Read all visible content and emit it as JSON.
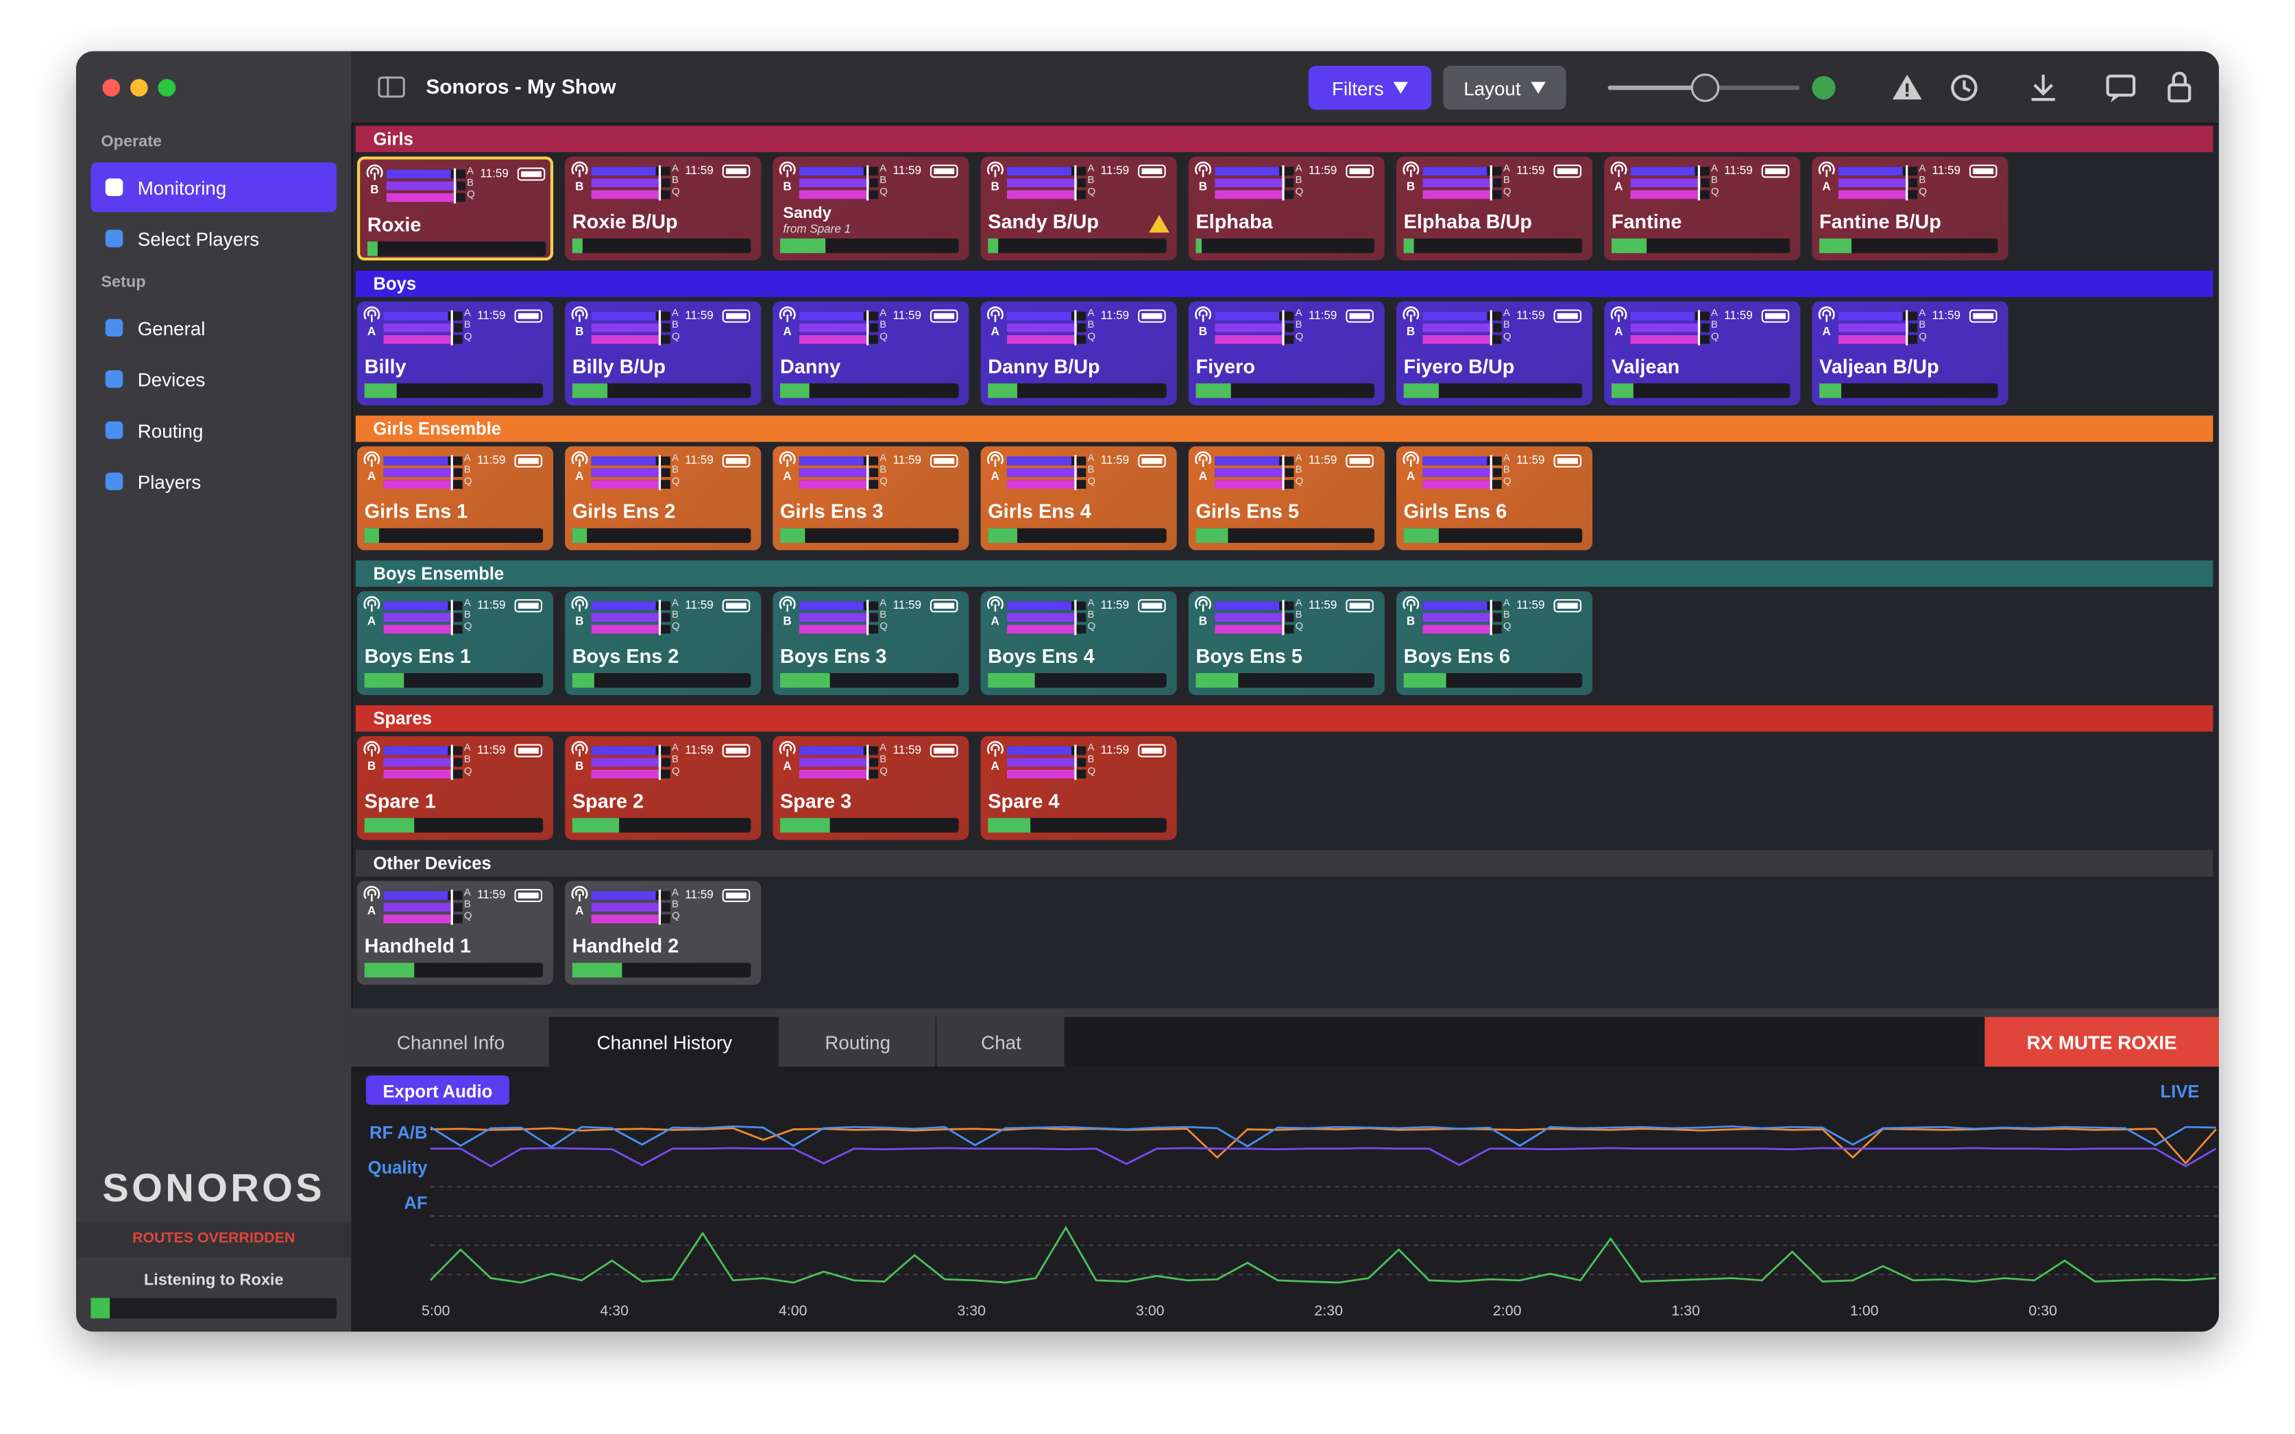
{
  "toolbar": {
    "title": "Sonoros - My Show",
    "filters": "Filters",
    "layout": "Layout"
  },
  "sidebar": {
    "sections": [
      {
        "title": "Operate",
        "items": [
          "Monitoring",
          "Select Players"
        ]
      },
      {
        "title": "Setup",
        "items": [
          "General",
          "Devices",
          "Routing",
          "Players"
        ]
      }
    ],
    "active_item": "Monitoring",
    "logo": "SONOROS",
    "status": "ROUTES OVERRIDDEN",
    "listening": "Listening to Roxie",
    "listening_level": 8
  },
  "meter_labels": [
    "A",
    "B",
    "Q"
  ],
  "groups": [
    {
      "name": "Girls",
      "header_color": "#a8264a",
      "tile_color": "#7e2a3b",
      "tiles": [
        {
          "name": "Roxie",
          "antenna": "B",
          "time": "11:59",
          "level": 6,
          "selected": true
        },
        {
          "name": "Roxie B/Up",
          "antenna": "B",
          "time": "11:59",
          "level": 6
        },
        {
          "name": "Sandy",
          "note": "from Spare 1",
          "antenna": "B",
          "time": "11:59",
          "level": 25
        },
        {
          "name": "Sandy B/Up",
          "antenna": "B",
          "time": "11:59",
          "level": 6,
          "warning": true
        },
        {
          "name": "Elphaba",
          "antenna": "B",
          "time": "11:59",
          "level": 3
        },
        {
          "name": "Elphaba B/Up",
          "antenna": "B",
          "time": "11:59",
          "level": 6
        },
        {
          "name": "Fantine",
          "antenna": "A",
          "time": "11:59",
          "level": 20
        },
        {
          "name": "Fantine B/Up",
          "antenna": "A",
          "time": "11:59",
          "level": 18
        }
      ]
    },
    {
      "name": "Boys",
      "header_color": "#3a1ee0",
      "tile_color": "#4b2fc4",
      "tiles": [
        {
          "name": "Billy",
          "antenna": "A",
          "time": "11:59",
          "level": 18
        },
        {
          "name": "Billy B/Up",
          "antenna": "B",
          "time": "11:59",
          "level": 20
        },
        {
          "name": "Danny",
          "antenna": "A",
          "time": "11:59",
          "level": 16
        },
        {
          "name": "Danny B/Up",
          "antenna": "A",
          "time": "11:59",
          "level": 16
        },
        {
          "name": "Fiyero",
          "antenna": "B",
          "time": "11:59",
          "level": 20
        },
        {
          "name": "Fiyero B/Up",
          "antenna": "B",
          "time": "11:59",
          "level": 20
        },
        {
          "name": "Valjean",
          "antenna": "A",
          "time": "11:59",
          "level": 12
        },
        {
          "name": "Valjean B/Up",
          "antenna": "A",
          "time": "11:59",
          "level": 12
        }
      ]
    },
    {
      "name": "Girls Ensemble",
      "header_color": "#f07a2c",
      "tile_color": "#d6692a",
      "tiles": [
        {
          "name": "Girls Ens 1",
          "antenna": "A",
          "time": "11:59",
          "level": 8
        },
        {
          "name": "Girls Ens 2",
          "antenna": "A",
          "time": "11:59",
          "level": 8
        },
        {
          "name": "Girls Ens 3",
          "antenna": "A",
          "time": "11:59",
          "level": 14
        },
        {
          "name": "Girls Ens 4",
          "antenna": "A",
          "time": "11:59",
          "level": 16
        },
        {
          "name": "Girls Ens 5",
          "antenna": "A",
          "time": "11:59",
          "level": 18
        },
        {
          "name": "Girls Ens 6",
          "antenna": "A",
          "time": "11:59",
          "level": 20
        }
      ]
    },
    {
      "name": "Boys Ensemble",
      "header_color": "#2a6b6a",
      "tile_color": "#2b6a68",
      "tiles": [
        {
          "name": "Boys Ens 1",
          "antenna": "A",
          "time": "11:59",
          "level": 22
        },
        {
          "name": "Boys Ens 2",
          "antenna": "B",
          "time": "11:59",
          "level": 12
        },
        {
          "name": "Boys Ens 3",
          "antenna": "B",
          "time": "11:59",
          "level": 28
        },
        {
          "name": "Boys Ens 4",
          "antenna": "A",
          "time": "11:59",
          "level": 26
        },
        {
          "name": "Boys Ens 5",
          "antenna": "B",
          "time": "11:59",
          "level": 24
        },
        {
          "name": "Boys Ens 6",
          "antenna": "B",
          "time": "11:59",
          "level": 24
        }
      ]
    },
    {
      "name": "Spares",
      "header_color": "#c8302a",
      "tile_color": "#b33326",
      "tiles": [
        {
          "name": "Spare 1",
          "antenna": "B",
          "time": "11:59",
          "level": 28
        },
        {
          "name": "Spare 2",
          "antenna": "B",
          "time": "11:59",
          "level": 26
        },
        {
          "name": "Spare 3",
          "antenna": "A",
          "time": "11:59",
          "level": 28
        },
        {
          "name": "Spare 4",
          "antenna": "A",
          "time": "11:59",
          "level": 24
        }
      ]
    },
    {
      "name": "Other Devices",
      "header_color": "#3a3a3e",
      "tile_color": "#4c4c50",
      "tiles": [
        {
          "name": "Handheld 1",
          "antenna": "A",
          "time": "11:59",
          "level": 28
        },
        {
          "name": "Handheld 2",
          "antenna": "A",
          "time": "11:59",
          "level": 28
        }
      ]
    }
  ],
  "tabs": {
    "items": [
      "Channel Info",
      "Channel History",
      "Routing",
      "Chat"
    ],
    "active": "Channel History",
    "mute_button": "RX MUTE ROXIE"
  },
  "history": {
    "export_button": "Export Audio",
    "live": "LIVE",
    "labels": [
      "RF A/B",
      "Quality",
      "AF"
    ],
    "time_labels": [
      "5:00",
      "4:30",
      "4:00",
      "3:30",
      "3:00",
      "2:30",
      "2:00",
      "1:30",
      "1:00",
      "0:30"
    ],
    "rf_a": [
      92,
      60,
      90,
      91,
      58,
      92,
      90,
      62,
      91,
      90,
      93,
      91,
      60,
      90,
      92,
      91,
      89,
      92,
      61,
      90,
      91,
      92,
      90,
      88,
      91,
      92,
      90,
      59,
      91,
      90,
      92,
      91,
      90,
      92,
      89,
      91,
      60,
      92,
      90,
      91,
      92,
      90,
      91,
      93,
      90,
      92,
      91,
      62,
      90,
      91,
      92,
      89,
      91,
      90,
      92,
      91,
      90,
      61,
      92,
      91
    ],
    "rf_b": [
      88,
      89,
      87,
      88,
      90,
      86,
      88,
      89,
      87,
      88,
      90,
      70,
      88,
      89,
      87,
      88,
      86,
      88,
      89,
      87,
      90,
      88,
      89,
      87,
      88,
      89,
      40,
      88,
      87,
      89,
      88,
      90,
      87,
      88,
      89,
      88,
      87,
      89,
      88,
      87,
      89,
      88,
      86,
      88,
      89,
      87,
      88,
      40,
      89,
      88,
      87,
      88,
      90,
      88,
      89,
      87,
      88,
      89,
      30,
      88
    ],
    "quality": [
      80,
      80,
      50,
      80,
      81,
      80,
      79,
      52,
      80,
      80,
      81,
      80,
      80,
      55,
      80,
      79,
      80,
      81,
      80,
      80,
      80,
      79,
      80,
      54,
      80,
      81,
      80,
      80,
      79,
      80,
      80,
      81,
      80,
      80,
      52,
      80,
      80,
      79,
      80,
      81,
      80,
      80,
      80,
      80,
      80,
      79,
      81,
      80,
      80,
      80,
      80,
      81,
      80,
      80,
      79,
      80,
      80,
      80,
      50,
      80
    ],
    "af": [
      12,
      40,
      14,
      10,
      18,
      12,
      30,
      11,
      13,
      55,
      12,
      14,
      10,
      20,
      12,
      11,
      35,
      13,
      12,
      10,
      14,
      60,
      12,
      11,
      16,
      12,
      13,
      28,
      12,
      11,
      10,
      14,
      40,
      12,
      11,
      13,
      12,
      18,
      12,
      50,
      11,
      12,
      13,
      14,
      12,
      38,
      11,
      12,
      25,
      12,
      13,
      11,
      14,
      12,
      30,
      11,
      12,
      13,
      12,
      14
    ]
  }
}
